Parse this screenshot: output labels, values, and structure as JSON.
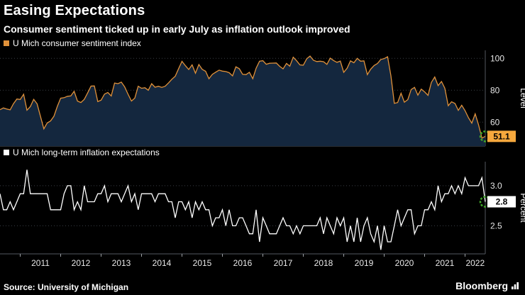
{
  "header": {
    "title": "Easing Expectations",
    "subtitle": "Consumer sentiment ticked up in early July as inflation outlook improved"
  },
  "source_line": "Source: University of Michigan",
  "brand": "Bloomberg",
  "x_axis": {
    "start": "2010-07",
    "end": "2022-07",
    "frequency": "monthly",
    "year_labels": [
      "2011",
      "2012",
      "2013",
      "2014",
      "2015",
      "2016",
      "2017",
      "2018",
      "2019",
      "2020",
      "2021",
      "2022"
    ]
  },
  "chart_data": [
    {
      "type": "area",
      "legend_label": "U Mich consumer sentiment index",
      "ylabel": "Level",
      "ylim": [
        45,
        105
      ],
      "yticks": [
        100,
        80,
        60
      ],
      "ytick_labels": [
        "100",
        "80",
        "60"
      ],
      "grid": true,
      "legend_position": "top-left",
      "line_color": "#e0913a",
      "fill_color": "#14273e",
      "marker_color": "#41a62a",
      "label_bg": "#f5a83d",
      "last_value_label": "51.1",
      "values": [
        67.8,
        68.9,
        68.2,
        67.7,
        71.6,
        74.5,
        74.2,
        77.5,
        67.5,
        69.8,
        74.3,
        71.5,
        63.7,
        55.8,
        59.5,
        60.8,
        63.7,
        69.9,
        75.0,
        75.3,
        76.2,
        76.4,
        79.3,
        73.2,
        72.3,
        74.3,
        78.3,
        82.6,
        82.7,
        72.9,
        73.8,
        77.6,
        78.6,
        76.4,
        84.5,
        84.1,
        85.1,
        82.1,
        77.5,
        73.2,
        75.1,
        82.5,
        81.2,
        81.6,
        80.0,
        84.1,
        81.9,
        82.5,
        81.8,
        82.5,
        84.6,
        86.9,
        88.8,
        93.6,
        98.1,
        95.4,
        93.0,
        95.9,
        90.7,
        96.1,
        93.1,
        91.9,
        87.2,
        90.0,
        91.3,
        92.6,
        92.0,
        91.7,
        91.0,
        89.0,
        94.7,
        93.5,
        90.0,
        89.8,
        91.2,
        87.2,
        93.8,
        98.2,
        98.5,
        96.3,
        96.9,
        97.0,
        97.1,
        95.0,
        93.4,
        96.8,
        95.1,
        100.7,
        98.5,
        95.9,
        95.7,
        99.7,
        101.4,
        98.8,
        98.0,
        98.2,
        97.9,
        96.2,
        100.1,
        98.6,
        97.5,
        98.3,
        91.2,
        93.8,
        98.4,
        97.2,
        100.0,
        98.2,
        98.4,
        89.8,
        93.2,
        95.5,
        96.8,
        99.3,
        99.8,
        101.0,
        89.1,
        71.8,
        72.3,
        78.1,
        72.5,
        74.1,
        80.4,
        81.8,
        76.9,
        80.7,
        79.0,
        76.8,
        84.9,
        88.3,
        82.9,
        85.5,
        81.2,
        70.3,
        72.8,
        71.7,
        67.4,
        70.6,
        67.2,
        62.8,
        59.4,
        65.2,
        58.4,
        50.0,
        51.1
      ]
    },
    {
      "type": "line",
      "legend_label": "U Mich long-term inflation expectations",
      "ylabel": "Percent",
      "ylim": [
        2.15,
        3.3
      ],
      "yticks": [
        3.0,
        2.5
      ],
      "ytick_labels": [
        "3.0",
        "2.5"
      ],
      "grid": true,
      "legend_position": "top-left",
      "line_color": "#ffffff",
      "fill_color": null,
      "marker_color": "#41a62a",
      "label_bg": "#ffffff",
      "last_value_label": "2.8",
      "values": [
        2.9,
        2.7,
        2.7,
        2.8,
        2.7,
        2.8,
        2.9,
        2.9,
        3.2,
        2.9,
        2.9,
        2.9,
        2.9,
        2.9,
        2.9,
        2.7,
        2.7,
        2.7,
        2.7,
        2.9,
        3.0,
        3.0,
        2.7,
        2.8,
        2.7,
        3.0,
        2.8,
        2.8,
        2.8,
        2.9,
        2.9,
        3.0,
        2.8,
        2.9,
        2.9,
        2.9,
        2.8,
        2.9,
        3.0,
        2.8,
        2.9,
        2.7,
        2.9,
        2.9,
        2.9,
        2.9,
        2.8,
        2.9,
        2.9,
        2.9,
        2.8,
        2.8,
        2.6,
        2.8,
        2.8,
        2.7,
        2.8,
        2.6,
        2.8,
        2.7,
        2.8,
        2.7,
        2.7,
        2.5,
        2.6,
        2.6,
        2.7,
        2.5,
        2.7,
        2.5,
        2.5,
        2.6,
        2.6,
        2.5,
        2.4,
        2.4,
        2.7,
        2.3,
        2.6,
        2.5,
        2.4,
        2.4,
        2.4,
        2.5,
        2.6,
        2.5,
        2.5,
        2.4,
        2.5,
        2.4,
        2.5,
        2.5,
        2.5,
        2.5,
        2.5,
        2.6,
        2.4,
        2.6,
        2.5,
        2.4,
        2.6,
        2.5,
        2.6,
        2.3,
        2.5,
        2.3,
        2.6,
        2.3,
        2.5,
        2.6,
        2.4,
        2.3,
        2.5,
        2.2,
        2.5,
        2.3,
        2.3,
        2.5,
        2.7,
        2.5,
        2.6,
        2.7,
        2.7,
        2.4,
        2.5,
        2.5,
        2.7,
        2.7,
        2.8,
        2.7,
        3.0,
        2.8,
        2.9,
        2.9,
        3.0,
        2.9,
        3.0,
        2.9,
        3.1,
        3.0,
        3.0,
        3.0,
        3.0,
        3.1,
        2.8
      ]
    }
  ]
}
